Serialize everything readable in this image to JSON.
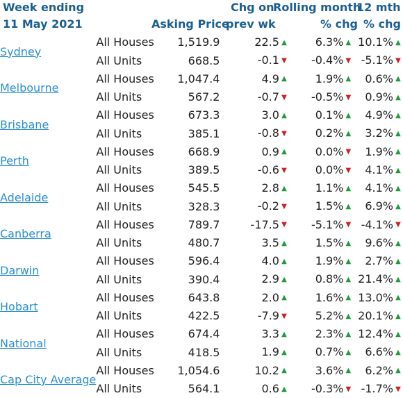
{
  "header": {
    "week_line1": "Week ending",
    "week_line2": "11 May 2021",
    "asking_price": "Asking Price",
    "chg_on": "Chg on",
    "prev_wk": "prev wk",
    "rolling_month": "Rolling month",
    "rolling_pct": "% chg",
    "twelve_mth": "12 mth",
    "twelve_pct": "% chg"
  },
  "rows": [
    {
      "city": "Sydney",
      "type": "All Houses",
      "price": "1,519.9",
      "chg": "22.5",
      "chg_dir": "up",
      "roll": "6.3%",
      "roll_dir": "up",
      "yr": "10.1%",
      "yr_dir": "up"
    },
    {
      "city": "",
      "type": "All Units",
      "price": "668.5",
      "chg": "-0.1",
      "chg_dir": "down",
      "roll": "-0.4%",
      "roll_dir": "down",
      "yr": "-5.1%",
      "yr_dir": "down"
    },
    {
      "city": "Melbourne",
      "type": "All Houses",
      "price": "1,047.4",
      "chg": "4.9",
      "chg_dir": "up",
      "roll": "1.9%",
      "roll_dir": "up",
      "yr": "0.6%",
      "yr_dir": "up"
    },
    {
      "city": "",
      "type": "All Units",
      "price": "567.2",
      "chg": "-0.7",
      "chg_dir": "down",
      "roll": "-0.5%",
      "roll_dir": "down",
      "yr": "0.9%",
      "yr_dir": "up"
    },
    {
      "city": "Brisbane",
      "type": "All Houses",
      "price": "673.3",
      "chg": "3.0",
      "chg_dir": "up",
      "roll": "0.1%",
      "roll_dir": "up",
      "yr": "4.9%",
      "yr_dir": "up"
    },
    {
      "city": "",
      "type": "All Units",
      "price": "385.1",
      "chg": "-0.8",
      "chg_dir": "down",
      "roll": "0.2%",
      "roll_dir": "up",
      "yr": "3.2%",
      "yr_dir": "up"
    },
    {
      "city": "Perth",
      "type": "All Houses",
      "price": "668.9",
      "chg": "0.9",
      "chg_dir": "up",
      "roll": "0.0%",
      "roll_dir": "down",
      "yr": "1.9%",
      "yr_dir": "up"
    },
    {
      "city": "",
      "type": "All Units",
      "price": "389.5",
      "chg": "-0.6",
      "chg_dir": "down",
      "roll": "0.0%",
      "roll_dir": "down",
      "yr": "4.1%",
      "yr_dir": "up"
    },
    {
      "city": "Adelaide",
      "type": "All Houses",
      "price": "545.5",
      "chg": "2.8",
      "chg_dir": "up",
      "roll": "1.1%",
      "roll_dir": "up",
      "yr": "4.1%",
      "yr_dir": "up"
    },
    {
      "city": "",
      "type": "All Units",
      "price": "328.3",
      "chg": "-0.2",
      "chg_dir": "down",
      "roll": "1.5%",
      "roll_dir": "up",
      "yr": "6.9%",
      "yr_dir": "up"
    },
    {
      "city": "Canberra",
      "type": "All Houses",
      "price": "789.7",
      "chg": "-17.5",
      "chg_dir": "down",
      "roll": "-5.1%",
      "roll_dir": "down",
      "yr": "-4.1%",
      "yr_dir": "down"
    },
    {
      "city": "",
      "type": "All Units",
      "price": "480.7",
      "chg": "3.5",
      "chg_dir": "up",
      "roll": "1.5%",
      "roll_dir": "up",
      "yr": "9.6%",
      "yr_dir": "up"
    },
    {
      "city": "Darwin",
      "type": "All Houses",
      "price": "596.4",
      "chg": "4.0",
      "chg_dir": "up",
      "roll": "1.9%",
      "roll_dir": "up",
      "yr": "2.7%",
      "yr_dir": "up"
    },
    {
      "city": "",
      "type": "All Units",
      "price": "390.4",
      "chg": "2.9",
      "chg_dir": "up",
      "roll": "0.8%",
      "roll_dir": "up",
      "yr": "21.4%",
      "yr_dir": "up"
    },
    {
      "city": "Hobart",
      "type": "All Houses",
      "price": "643.8",
      "chg": "2.0",
      "chg_dir": "up",
      "roll": "1.6%",
      "roll_dir": "up",
      "yr": "13.0%",
      "yr_dir": "up"
    },
    {
      "city": "",
      "type": "All Units",
      "price": "422.5",
      "chg": "-7.9",
      "chg_dir": "down",
      "roll": "5.2%",
      "roll_dir": "up",
      "yr": "20.1%",
      "yr_dir": "up"
    },
    {
      "city": "National",
      "type": "All Houses",
      "price": "674.4",
      "chg": "3.3",
      "chg_dir": "up",
      "roll": "2.3%",
      "roll_dir": "up",
      "yr": "12.4%",
      "yr_dir": "up"
    },
    {
      "city": "",
      "type": "All Units",
      "price": "418.5",
      "chg": "1.9",
      "chg_dir": "up",
      "roll": "0.7%",
      "roll_dir": "up",
      "yr": "6.6%",
      "yr_dir": "up"
    },
    {
      "city": "Cap City Average",
      "type": "All Houses",
      "price": "1,054.6",
      "chg": "10.2",
      "chg_dir": "up",
      "roll": "3.6%",
      "roll_dir": "up",
      "yr": "6.2%",
      "yr_dir": "up"
    },
    {
      "city": "",
      "type": "All Units",
      "price": "564.1",
      "chg": "0.6",
      "chg_dir": "up",
      "roll": "-0.3%",
      "roll_dir": "down",
      "yr": "-1.7%",
      "yr_dir": "down"
    }
  ],
  "arrows": {
    "up": "▲",
    "down": "▼"
  },
  "colors": {
    "header": "#1a5f8f",
    "link": "#2a8fd0",
    "up": "#1e9b3a",
    "down": "#cc2222"
  }
}
